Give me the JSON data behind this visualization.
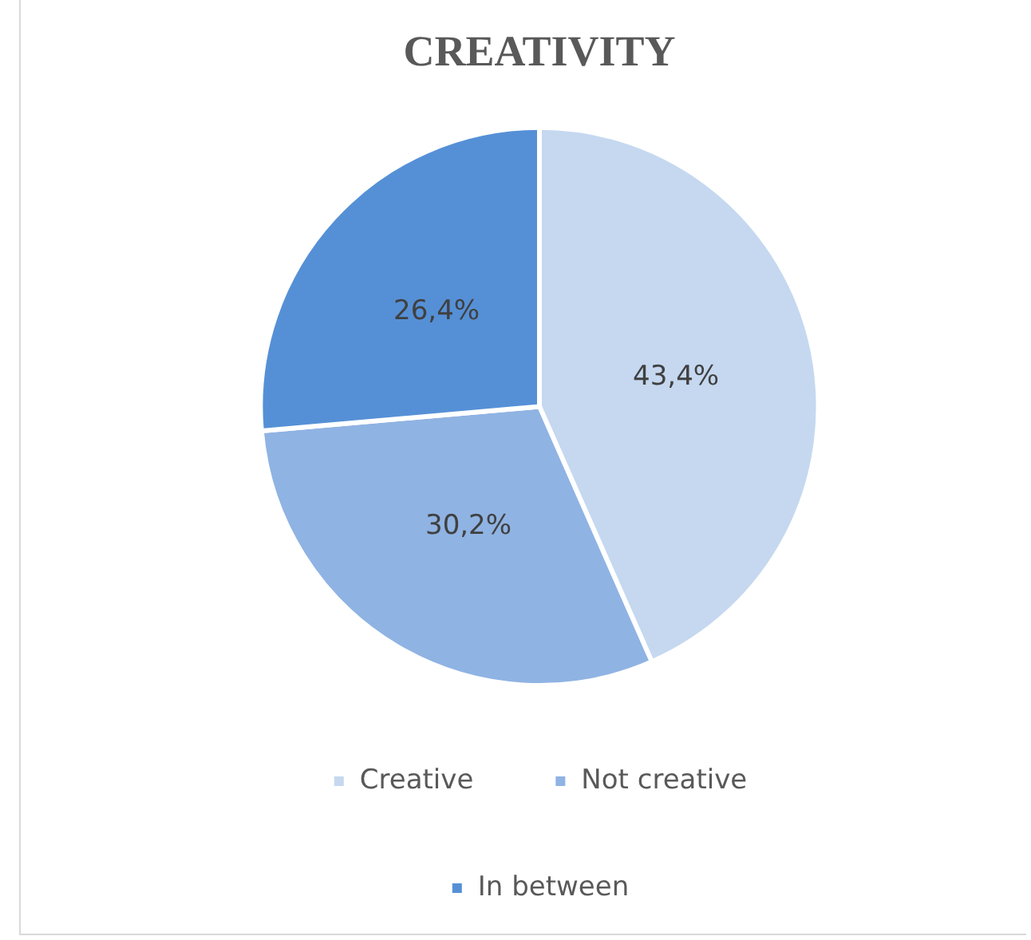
{
  "chart_data": {
    "type": "pie",
    "title": "CREATIVITY",
    "categories": [
      "Creative",
      "Not creative",
      "In between"
    ],
    "values": [
      43.4,
      30.2,
      26.4
    ],
    "colors": [
      "#c5d8f0",
      "#8fb3e3",
      "#5590d6"
    ],
    "value_labels": [
      "43,4%",
      "30,2%",
      "26,4%"
    ],
    "legend": "bottom"
  }
}
